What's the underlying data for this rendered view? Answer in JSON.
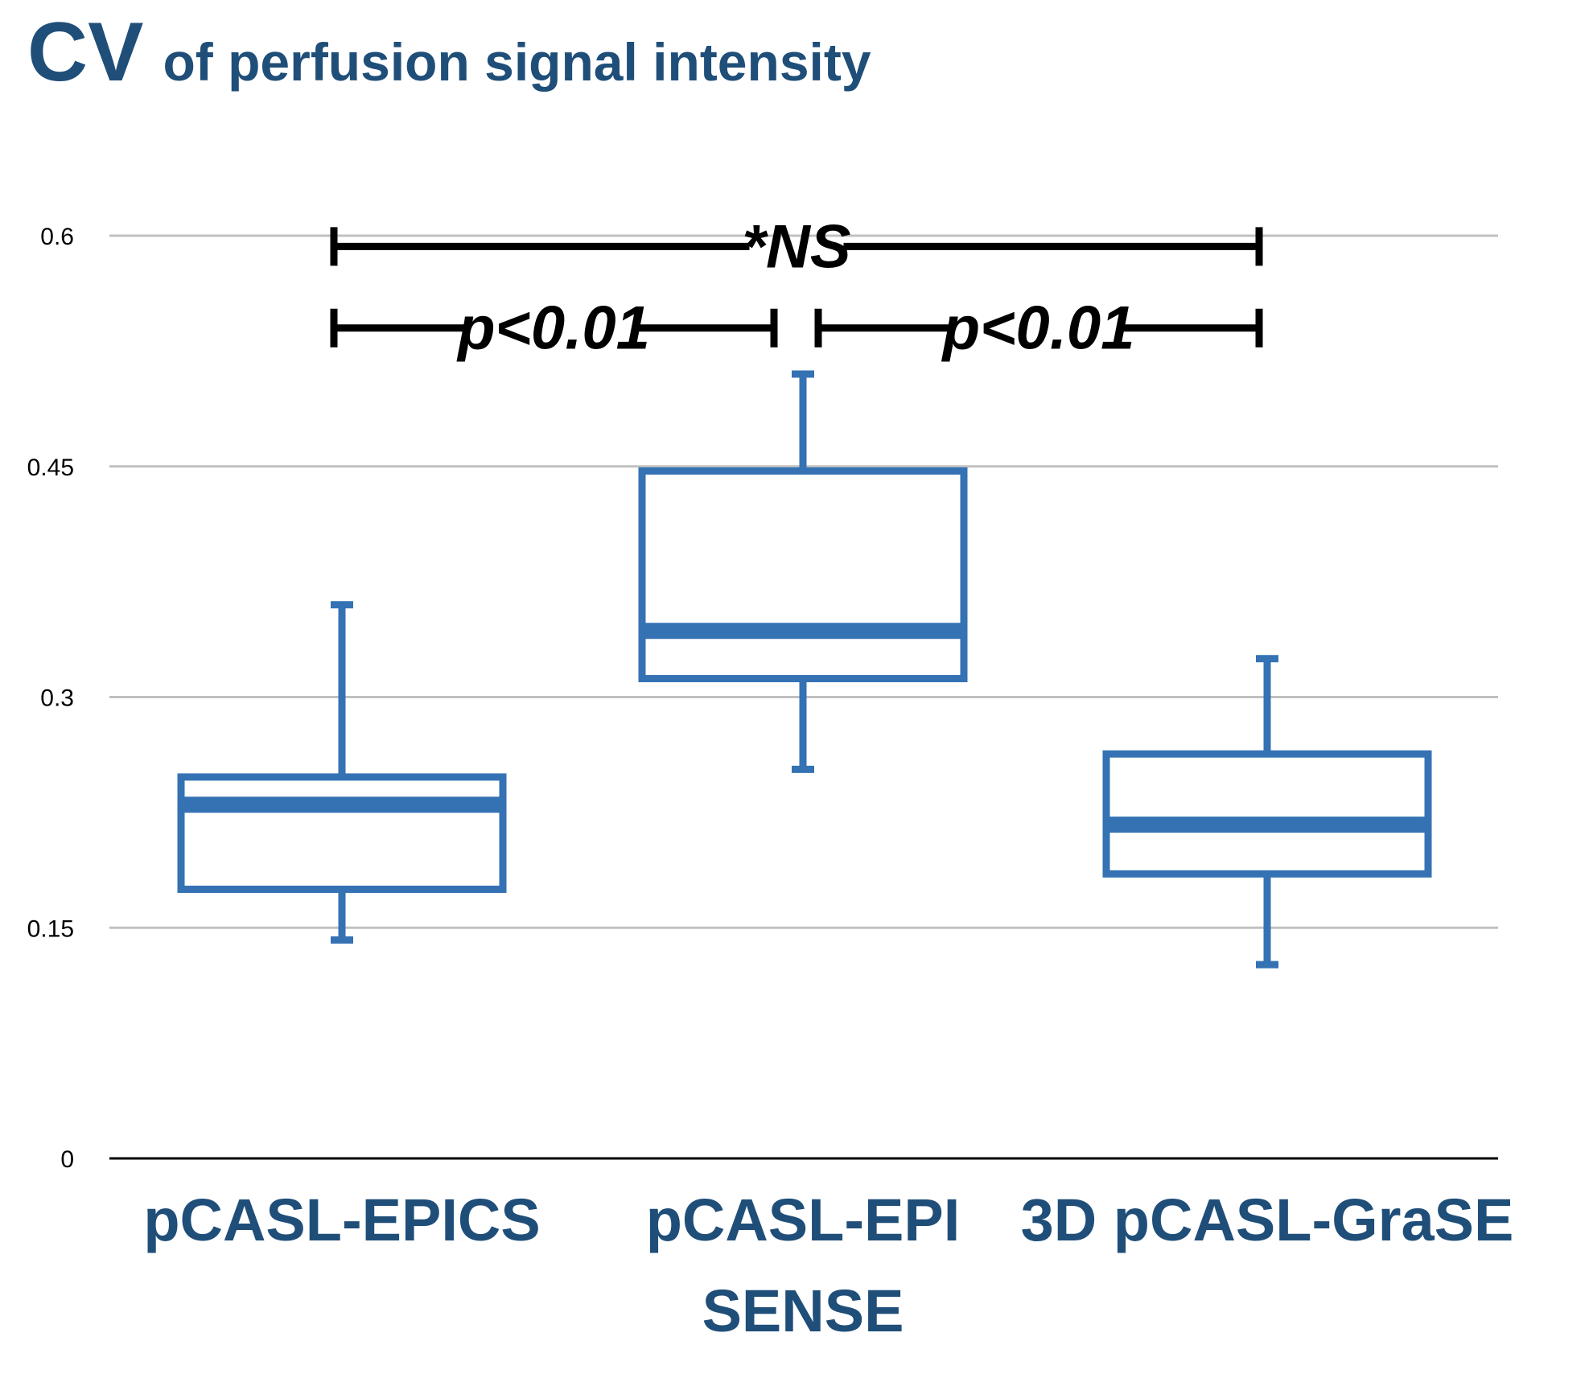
{
  "title": {
    "main": "CV",
    "sub": "of perfusion signal intensity"
  },
  "colors": {
    "title": "#1f4e79",
    "box": "#3472b4",
    "grid": "#c0c0c0",
    "axis": "#000000",
    "annotation": "#000000"
  },
  "chart_data": {
    "type": "box",
    "title": "CV of perfusion signal intensity",
    "xlabel": "",
    "ylabel": "",
    "ylim": [
      0,
      0.6
    ],
    "y_ticks": [
      {
        "value": 0,
        "label": "0"
      },
      {
        "value": 0.15,
        "label": "0.15"
      },
      {
        "value": 0.3,
        "label": "0.3"
      },
      {
        "value": 0.45,
        "label": "0.45"
      },
      {
        "value": 0.6,
        "label": "0.6"
      }
    ],
    "grid": true,
    "categories": [
      {
        "lines": [
          "pCASL-EPICS"
        ]
      },
      {
        "lines": [
          "pCASL-EPI",
          "SENSE"
        ]
      },
      {
        "lines": [
          "3D pCASL-GraSE"
        ]
      }
    ],
    "boxes": [
      {
        "min": 0.142,
        "q1": 0.175,
        "median": 0.23,
        "q3": 0.248,
        "max": 0.36
      },
      {
        "min": 0.253,
        "q1": 0.312,
        "median": 0.343,
        "q3": 0.447,
        "max": 0.51
      },
      {
        "min": 0.126,
        "q1": 0.185,
        "median": 0.217,
        "q3": 0.263,
        "max": 0.325
      }
    ],
    "annotations": [
      {
        "text": "*NS",
        "from": 0,
        "to": 2,
        "level": 0.593
      },
      {
        "text": "p<0.01",
        "from": 0,
        "to": 1,
        "level": 0.54
      },
      {
        "text": "p<0.01",
        "from": 1,
        "to": 2,
        "level": 0.54
      }
    ]
  }
}
